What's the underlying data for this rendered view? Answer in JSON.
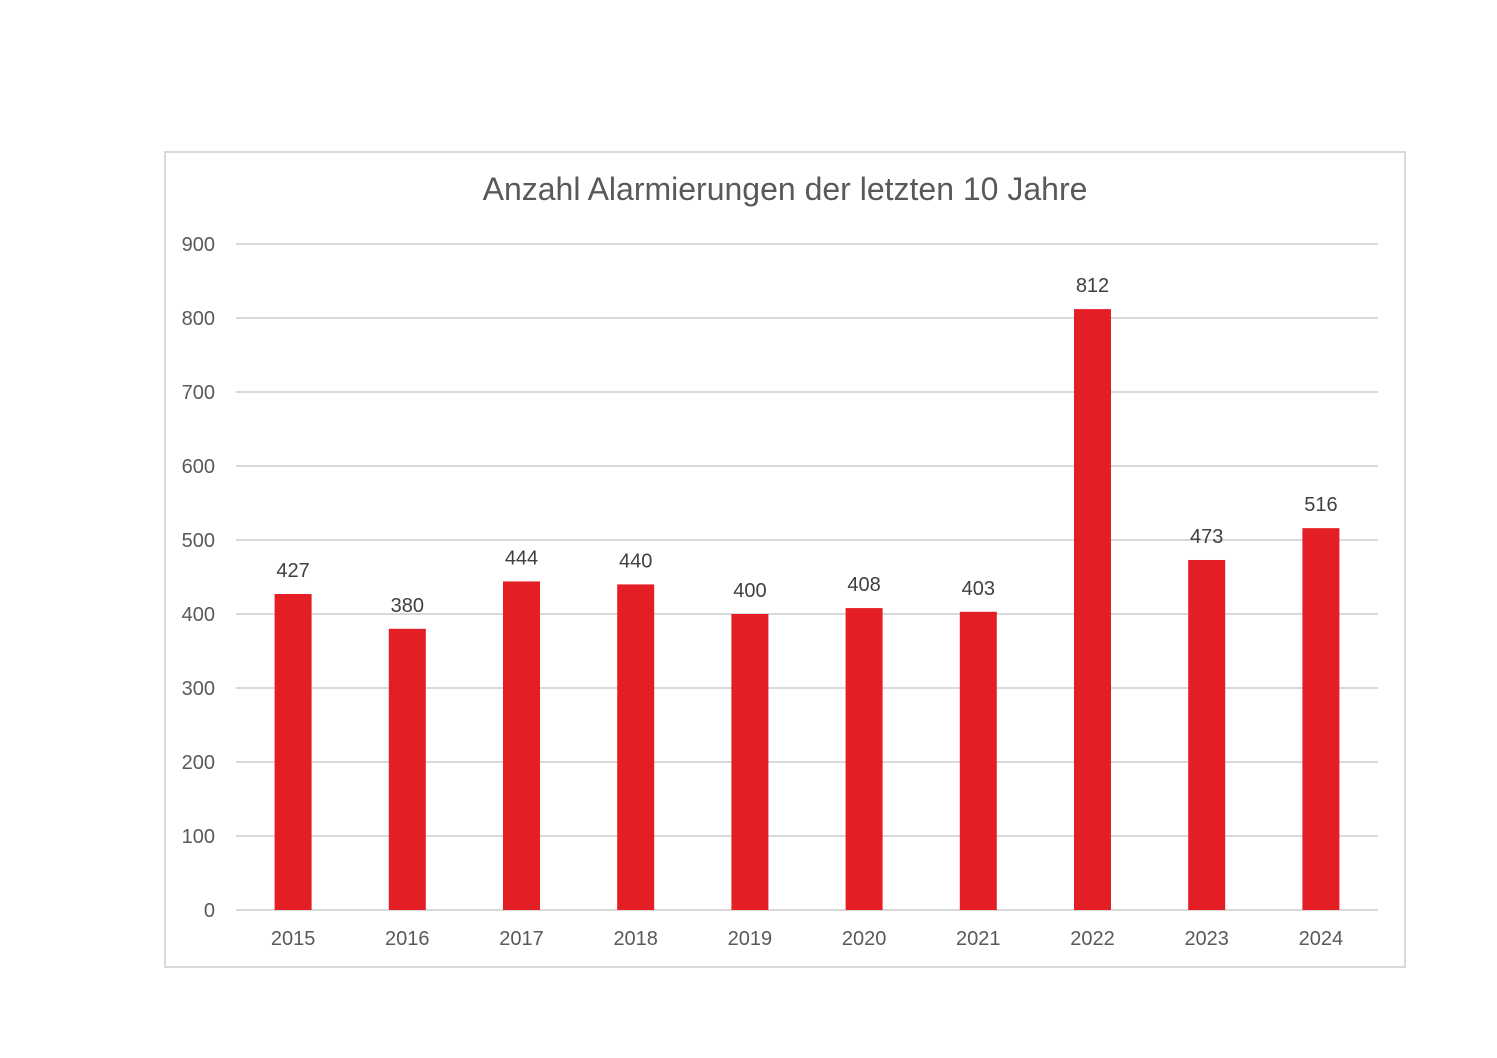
{
  "chart_data": {
    "type": "bar",
    "title": "Anzahl Alarmierungen der letzten 10 Jahre",
    "xlabel": "",
    "ylabel": "",
    "categories": [
      "2015",
      "2016",
      "2017",
      "2018",
      "2019",
      "2020",
      "2021",
      "2022",
      "2023",
      "2024"
    ],
    "values": [
      427,
      380,
      444,
      440,
      400,
      408,
      403,
      812,
      473,
      516
    ],
    "series": [
      {
        "name": "Alarmierungen",
        "values": [
          427,
          380,
          444,
          440,
          400,
          408,
          403,
          812,
          473,
          516
        ]
      }
    ],
    "ylim": [
      0,
      900
    ],
    "yticks": [
      "0",
      "100",
      "200",
      "300",
      "400",
      "500",
      "600",
      "700",
      "800",
      "900"
    ],
    "grid": true,
    "legend": "none",
    "data_labels": true,
    "bar_color": "#e31e24",
    "grid_color": "#d9d9d9",
    "text_color": "#595959"
  }
}
